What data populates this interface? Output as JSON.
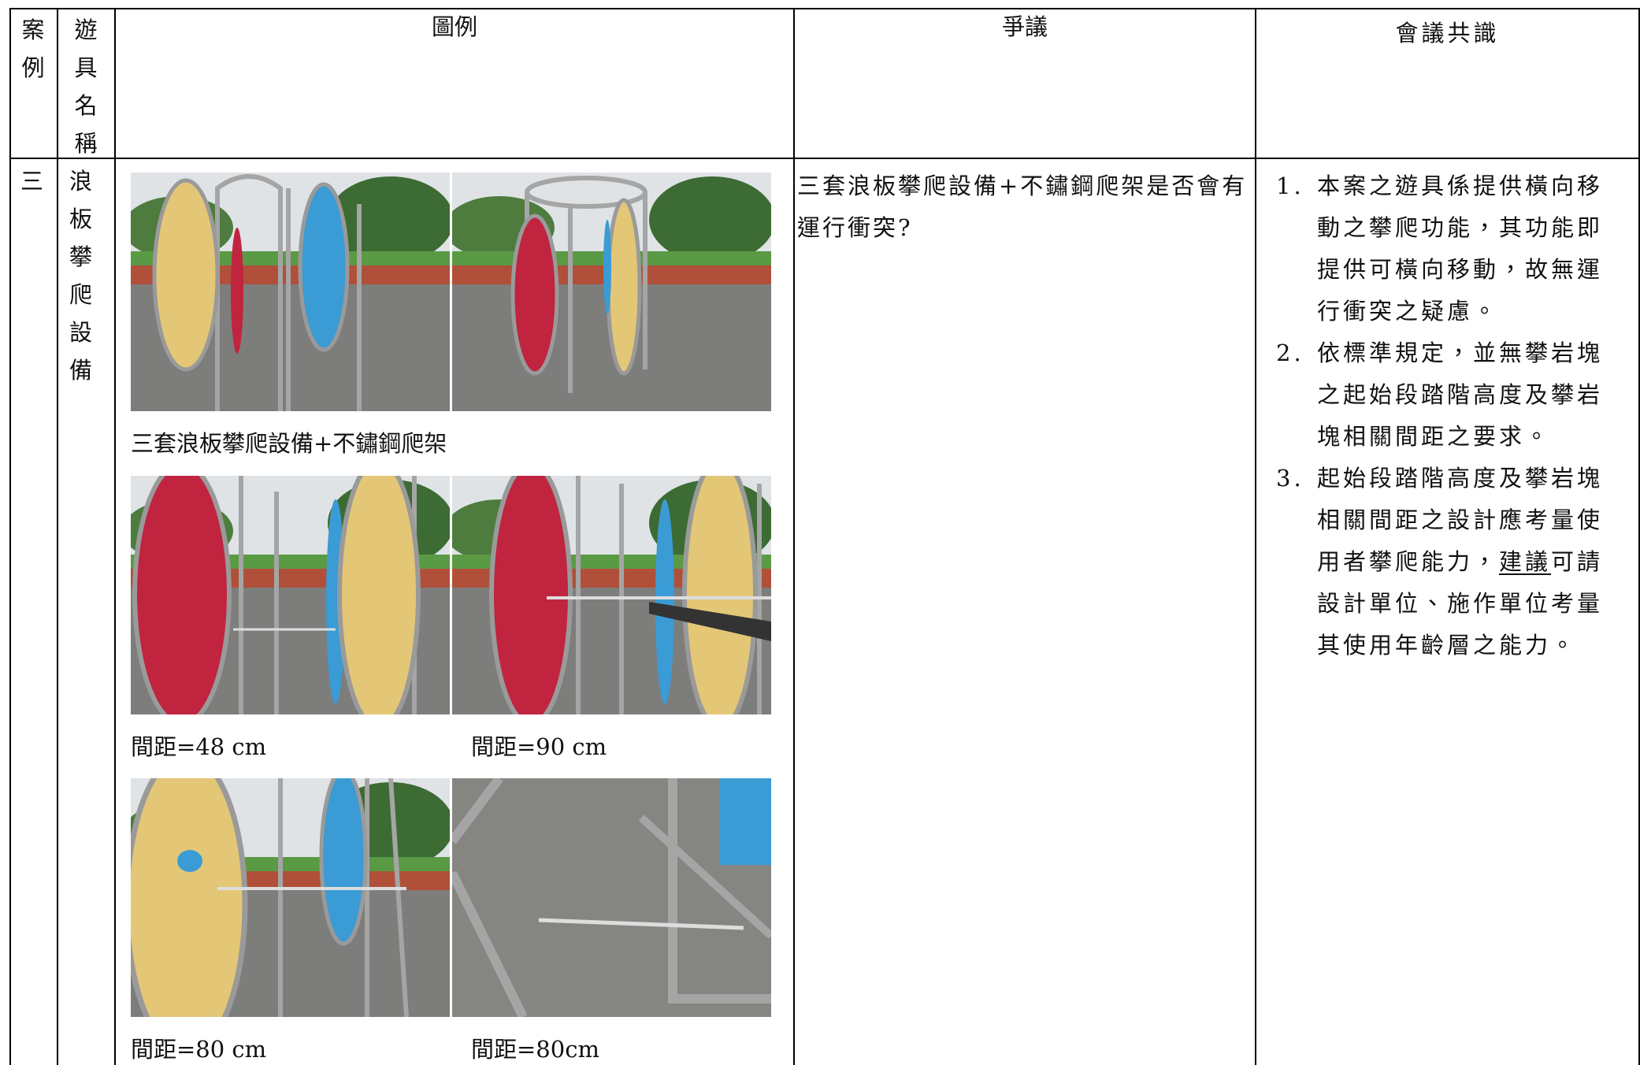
{
  "table": {
    "headers": [
      "案例",
      "遊具名稱",
      "圖例",
      "爭議",
      "會議共識"
    ],
    "rows": [
      {
        "case": "三",
        "equipment": "浪板攀爬設備",
        "figures": {
          "caption": "三套浪板攀爬設備+不鏽鋼爬架",
          "measurements": [
            "間距=48 cm",
            "間距=90 cm",
            "間距=80 cm",
            "間距=80cm"
          ]
        },
        "dispute": "三套浪板攀爬設備+不鏽鋼爬架是否會有運行衝突?",
        "consensus": [
          {
            "number": "1.",
            "parts": [
              "本案之遊具係提供橫向移動之攀爬功能，其功能即提供可橫向移動，故無運行衝突之疑慮。"
            ]
          },
          {
            "number": "2.",
            "parts": [
              "依標準規定，並無攀岩塊之起始段踏階高度及攀岩塊相關間距之要求。"
            ]
          },
          {
            "number": "3.",
            "parts": [
              "起始段踏階高度及攀岩塊相關間距之設計應考量使用者攀爬能力，",
              "建議",
              "可請設計單位、施作單位考量其使用年齡層之能力。"
            ]
          }
        ]
      }
    ]
  }
}
